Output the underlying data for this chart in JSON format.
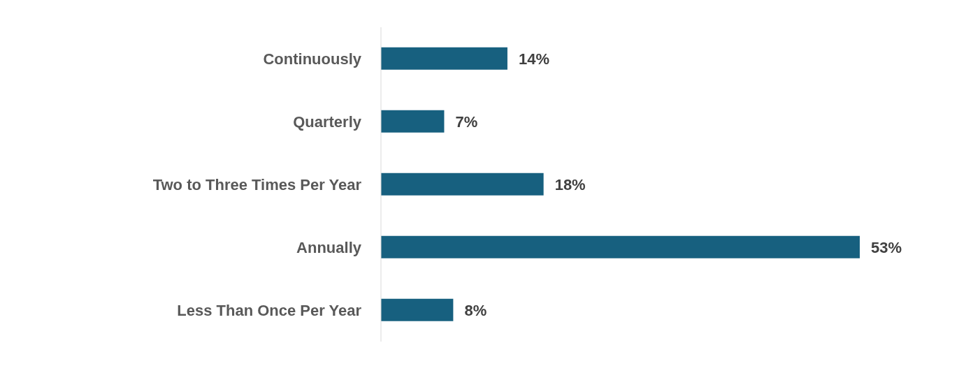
{
  "chart_data": {
    "type": "bar",
    "orientation": "horizontal",
    "categories": [
      "Continuously",
      "Quarterly",
      "Two to Three Times Per Year",
      "Annually",
      "Less Than Once Per Year"
    ],
    "values": [
      14,
      7,
      18,
      53,
      8
    ],
    "value_labels": [
      "14%",
      "7%",
      "18%",
      "53%",
      "8%"
    ],
    "color": "#17607f"
  }
}
